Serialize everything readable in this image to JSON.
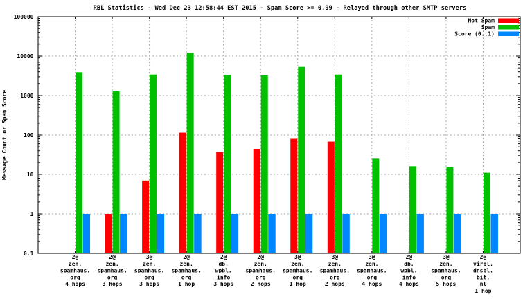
{
  "chart_data": {
    "type": "bar",
    "title": "RBL Statistics - Wed Dec 23 12:58:44 EST 2015 - Spam Score >= 0.99 - Relayed through other SMTP servers",
    "ylabel": "Message Count or Spam Score",
    "y_scale": "log",
    "ylim": [
      0.1,
      100000
    ],
    "grid": true,
    "legend_position": "top-right",
    "y_ticks": [
      {
        "label": "100000",
        "value": 100000
      },
      {
        "label": "10000",
        "value": 10000
      },
      {
        "label": "1000",
        "value": 1000
      },
      {
        "label": "100",
        "value": 100
      },
      {
        "label": "10",
        "value": 10
      },
      {
        "label": "1",
        "value": 1
      },
      {
        "label": "0.1",
        "value": 0.1
      }
    ],
    "categories": [
      [
        "2@",
        "zen.",
        "spamhaus.",
        "org",
        "4 hops"
      ],
      [
        "2@",
        "zen.",
        "spamhaus.",
        "org",
        "3 hops"
      ],
      [
        "3@",
        "zen.",
        "spamhaus.",
        "org",
        "3 hops"
      ],
      [
        "2@",
        "zen.",
        "spamhaus.",
        "org",
        "1 hop"
      ],
      [
        "2@",
        "db.",
        "wpbl.",
        "info",
        "3 hops"
      ],
      [
        "2@",
        "zen.",
        "spamhaus.",
        "org",
        "2 hops"
      ],
      [
        "3@",
        "zen.",
        "spamhaus.",
        "org",
        "1 hop"
      ],
      [
        "3@",
        "zen.",
        "spamhaus.",
        "org",
        "2 hops"
      ],
      [
        "3@",
        "zen.",
        "spamhaus.",
        "org",
        "4 hops"
      ],
      [
        "2@",
        "db.",
        "wpbl.",
        "info",
        "4 hops"
      ],
      [
        "3@",
        "zen.",
        "spamhaus.",
        "org",
        "5 hops"
      ],
      [
        "2@",
        "virbl.",
        "dnsbl.",
        "bit.",
        "nl",
        "1 hop"
      ]
    ],
    "series": [
      {
        "name": "Not Spam",
        "color": "#ff0000",
        "values": [
          null,
          1,
          7,
          115,
          37,
          43,
          80,
          68,
          null,
          null,
          null,
          null
        ]
      },
      {
        "name": "Spam",
        "color": "#00c000",
        "values": [
          3900,
          1280,
          3400,
          12000,
          3300,
          3250,
          5300,
          3400,
          25,
          16,
          15,
          11
        ]
      },
      {
        "name": "Score (0..1)",
        "color": "#0087ff",
        "values": [
          1,
          1,
          1,
          1,
          1,
          1,
          1,
          1,
          1,
          1,
          1,
          1
        ]
      }
    ],
    "colors": {
      "grid": "#a8a8a8",
      "border": "#000000",
      "background": "#ffffff"
    }
  }
}
